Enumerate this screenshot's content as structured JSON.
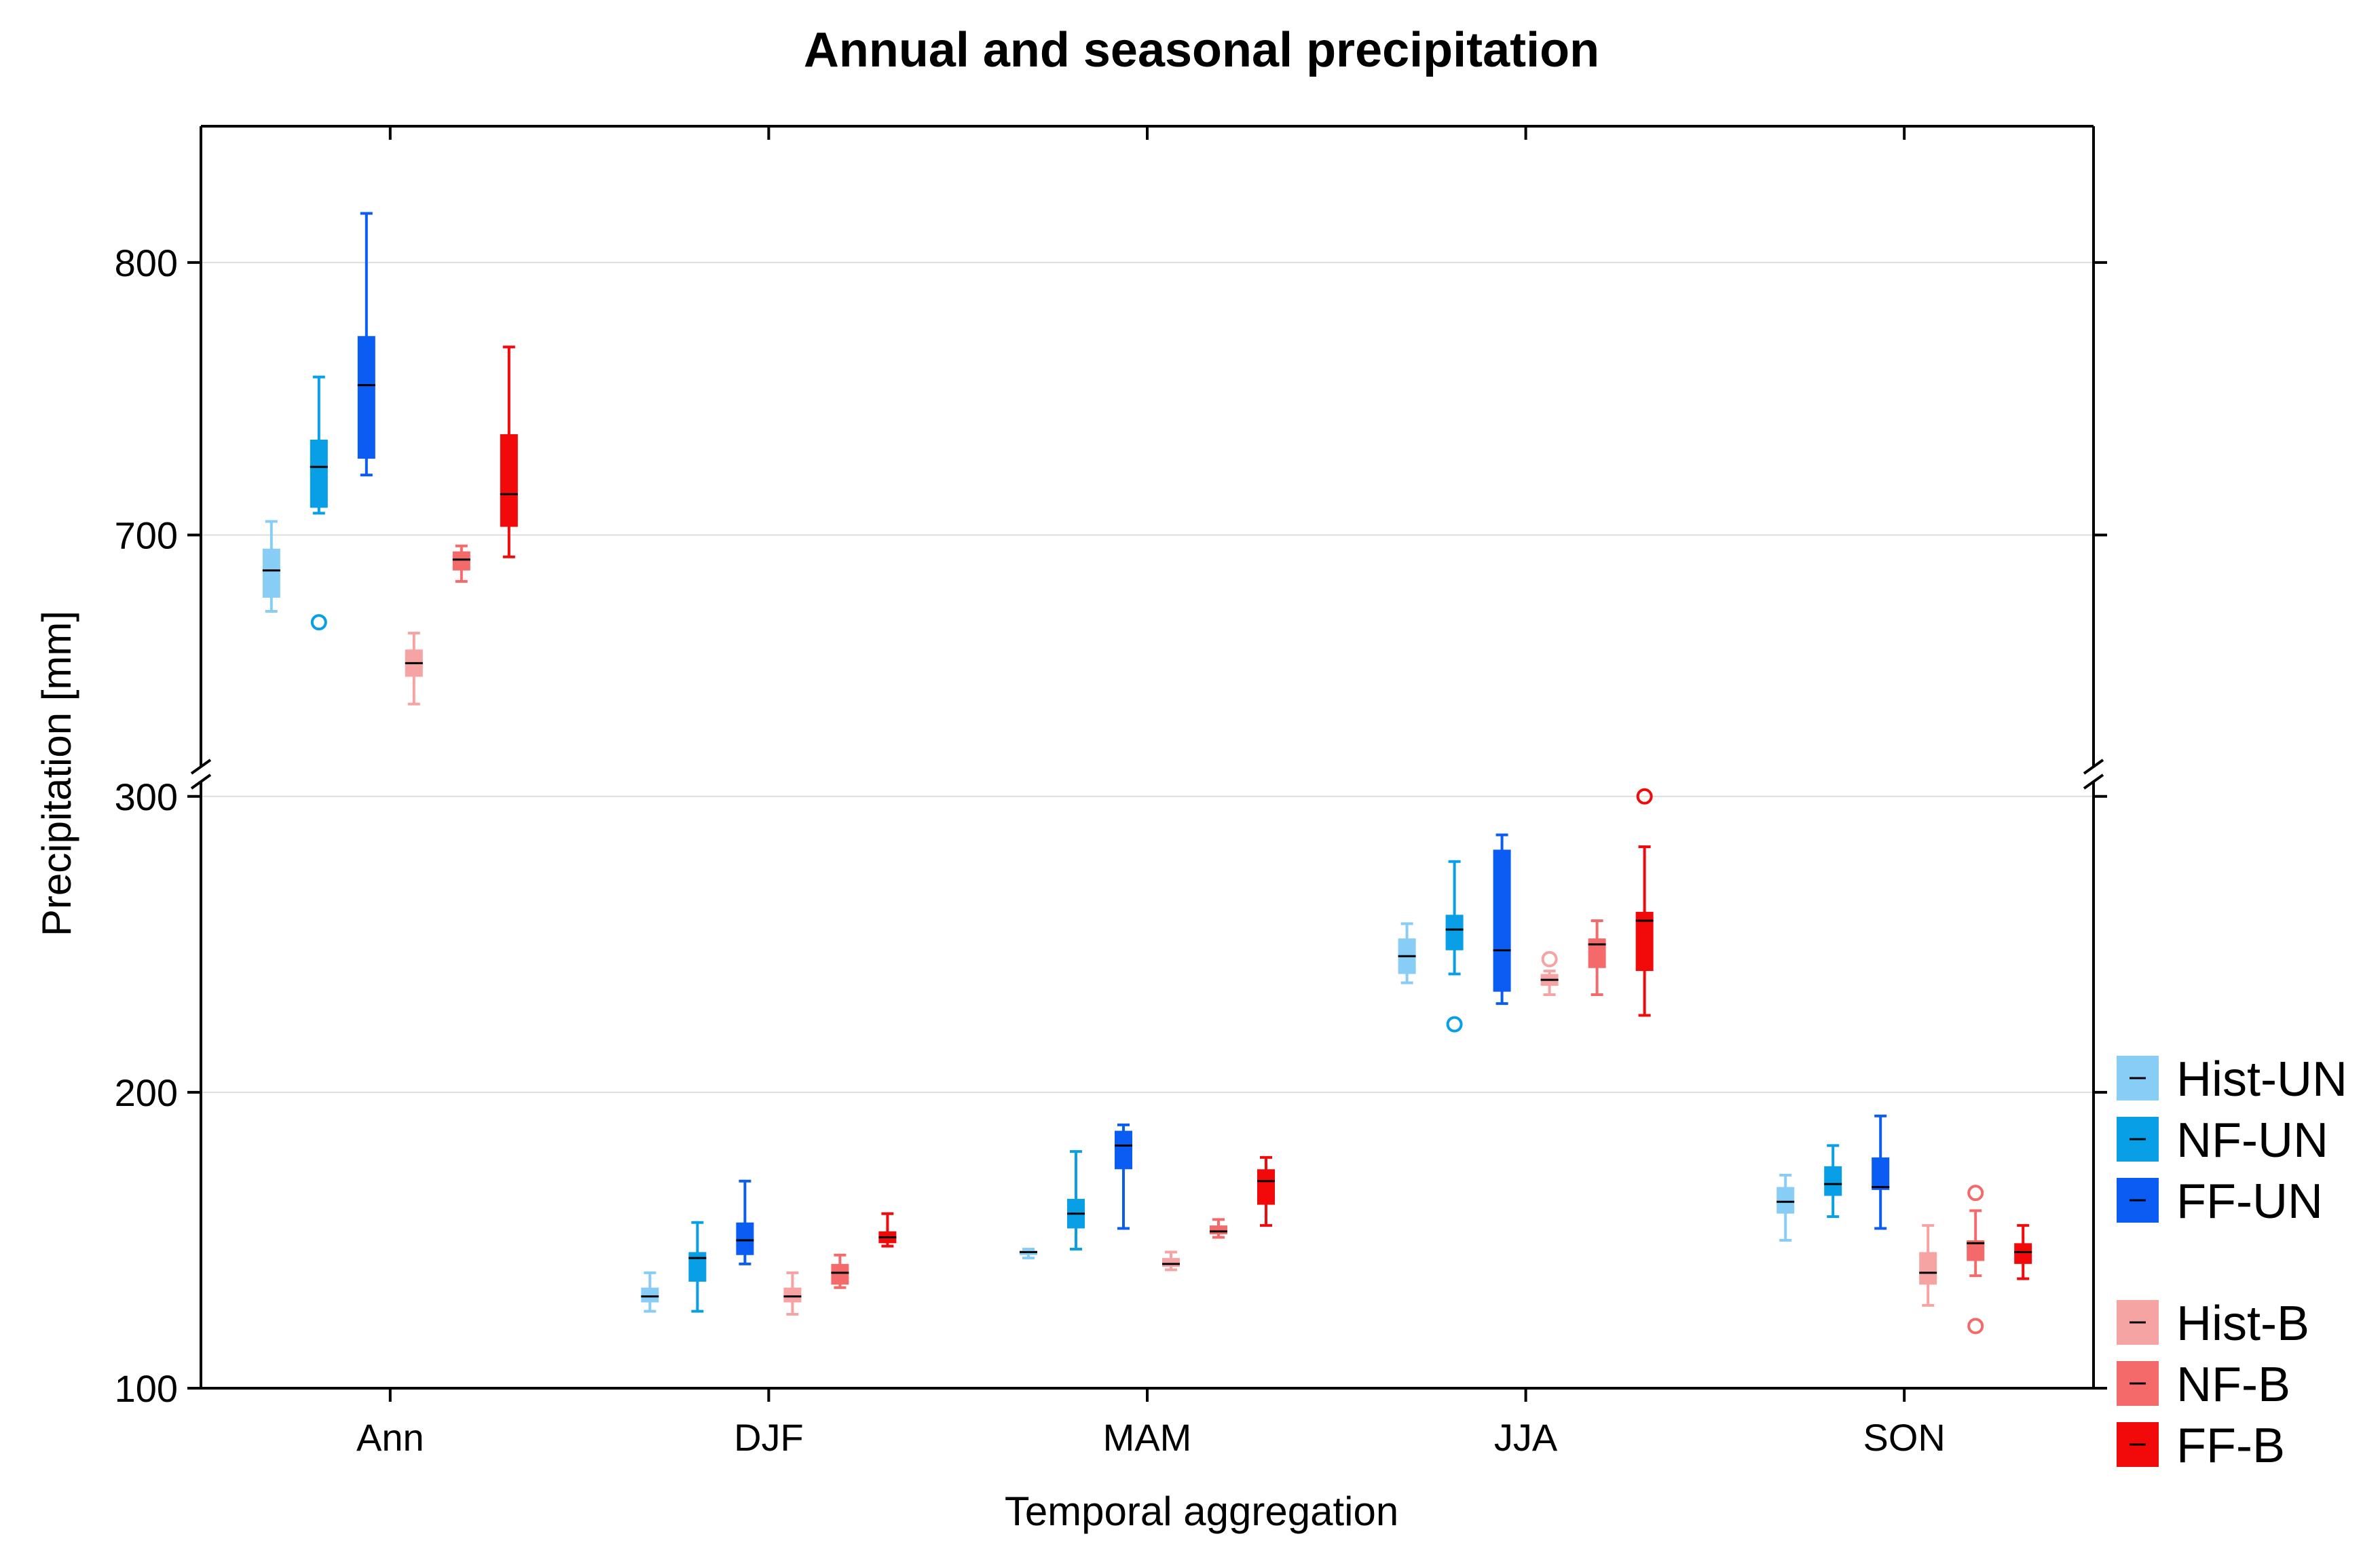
{
  "chart_data": {
    "type": "box",
    "title": "Annual and seasonal precipitation",
    "xlabel": "Temporal aggregation",
    "ylabel": "Precipitation [mm]",
    "categories": [
      "Ann",
      "DJF",
      "MAM",
      "JJA",
      "SON"
    ],
    "y_axis_segments": [
      {
        "name": "upper",
        "ylim": [
          615,
          850
        ],
        "ticks": [
          700,
          800
        ]
      },
      {
        "name": "lower",
        "ylim": [
          100,
          305
        ],
        "ticks": [
          100,
          200,
          300
        ]
      }
    ],
    "y_tick_labels": [
      "800",
      "700",
      "300",
      "200",
      "100"
    ],
    "grid": true,
    "legend_position": "right",
    "legend_groups": [
      [
        "Hist-UN",
        "NF-UN",
        "FF-UN"
      ],
      [
        "Hist-B",
        "NF-B",
        "FF-B"
      ]
    ],
    "series": [
      {
        "name": "Hist-UN",
        "color": "#87CDF5",
        "boxes": [
          {
            "category": "Ann",
            "min": 672,
            "q1": 677,
            "median": 687,
            "q3": 695,
            "max": 705,
            "outliers": []
          },
          {
            "category": "DJF",
            "min": 126,
            "q1": 129,
            "median": 131,
            "q3": 134,
            "max": 139,
            "outliers": []
          },
          {
            "category": "MAM",
            "min": 144,
            "q1": 145,
            "median": 146,
            "q3": 146.5,
            "max": 147,
            "outliers": []
          },
          {
            "category": "JJA",
            "min": 237,
            "q1": 240,
            "median": 246,
            "q3": 252,
            "max": 257,
            "outliers": []
          },
          {
            "category": "SON",
            "min": 150,
            "q1": 159,
            "median": 163,
            "q3": 168,
            "max": 172,
            "outliers": []
          }
        ]
      },
      {
        "name": "NF-UN",
        "color": "#089FE6",
        "boxes": [
          {
            "category": "Ann",
            "min": 708,
            "q1": 710,
            "median": 725,
            "q3": 735,
            "max": 758,
            "outliers": [
              668
            ]
          },
          {
            "category": "DJF",
            "min": 126,
            "q1": 136,
            "median": 144,
            "q3": 146,
            "max": 156,
            "outliers": []
          },
          {
            "category": "MAM",
            "min": 147,
            "q1": 154,
            "median": 159,
            "q3": 164,
            "max": 180,
            "outliers": []
          },
          {
            "category": "JJA",
            "min": 240,
            "q1": 248,
            "median": 255,
            "q3": 260,
            "max": 278,
            "outliers": [
              223
            ]
          },
          {
            "category": "SON",
            "min": 158,
            "q1": 165,
            "median": 169,
            "q3": 175,
            "max": 182,
            "outliers": []
          }
        ]
      },
      {
        "name": "FF-UN",
        "color": "#0A5CF2",
        "boxes": [
          {
            "category": "Ann",
            "min": 722,
            "q1": 728,
            "median": 755,
            "q3": 773,
            "max": 818,
            "outliers": []
          },
          {
            "category": "DJF",
            "min": 142,
            "q1": 145,
            "median": 150,
            "q3": 156,
            "max": 170,
            "outliers": []
          },
          {
            "category": "MAM",
            "min": 154,
            "q1": 174,
            "median": 182,
            "q3": 187,
            "max": 189,
            "outliers": []
          },
          {
            "category": "JJA",
            "min": 230,
            "q1": 234,
            "median": 248,
            "q3": 282,
            "max": 287,
            "outliers": []
          },
          {
            "category": "SON",
            "min": 154,
            "q1": 167,
            "median": 168,
            "q3": 178,
            "max": 192,
            "outliers": []
          }
        ]
      },
      {
        "name": "Hist-B",
        "color": "#F6A3A3",
        "boxes": [
          {
            "category": "Ann",
            "min": 638,
            "q1": 648,
            "median": 653,
            "q3": 658,
            "max": 664,
            "outliers": []
          },
          {
            "category": "DJF",
            "min": 125,
            "q1": 129,
            "median": 131,
            "q3": 134,
            "max": 139,
            "outliers": []
          },
          {
            "category": "MAM",
            "min": 140,
            "q1": 141,
            "median": 142,
            "q3": 144,
            "max": 146,
            "outliers": []
          },
          {
            "category": "JJA",
            "min": 233,
            "q1": 236,
            "median": 238,
            "q3": 240,
            "max": 241,
            "outliers": [
              245
            ]
          },
          {
            "category": "SON",
            "min": 128,
            "q1": 135,
            "median": 139,
            "q3": 146,
            "max": 155,
            "outliers": []
          }
        ]
      },
      {
        "name": "NF-B",
        "color": "#F46A6A",
        "boxes": [
          {
            "category": "Ann",
            "min": 683,
            "q1": 687,
            "median": 691,
            "q3": 694,
            "max": 696,
            "outliers": []
          },
          {
            "category": "DJF",
            "min": 134,
            "q1": 135,
            "median": 139,
            "q3": 142,
            "max": 145,
            "outliers": []
          },
          {
            "category": "MAM",
            "min": 151,
            "q1": 152,
            "median": 153,
            "q3": 155,
            "max": 157,
            "outliers": []
          },
          {
            "category": "JJA",
            "min": 233,
            "q1": 242,
            "median": 250,
            "q3": 252,
            "max": 258,
            "outliers": []
          },
          {
            "category": "SON",
            "min": 138,
            "q1": 143,
            "median": 149,
            "q3": 150,
            "max": 160,
            "outliers": [
              121,
              166
            ]
          }
        ]
      },
      {
        "name": "FF-B",
        "color": "#F20A0A",
        "boxes": [
          {
            "category": "Ann",
            "min": 692,
            "q1": 703,
            "median": 715,
            "q3": 737,
            "max": 769,
            "outliers": []
          },
          {
            "category": "DJF",
            "min": 148,
            "q1": 149,
            "median": 151,
            "q3": 153,
            "max": 159,
            "outliers": []
          },
          {
            "category": "MAM",
            "min": 155,
            "q1": 162,
            "median": 170,
            "q3": 174,
            "max": 178,
            "outliers": []
          },
          {
            "category": "JJA",
            "min": 226,
            "q1": 241,
            "median": 258,
            "q3": 261,
            "max": 283,
            "outliers": [
              300
            ]
          },
          {
            "category": "SON",
            "min": 137,
            "q1": 142,
            "median": 146,
            "q3": 149,
            "max": 155,
            "outliers": []
          }
        ]
      }
    ]
  }
}
